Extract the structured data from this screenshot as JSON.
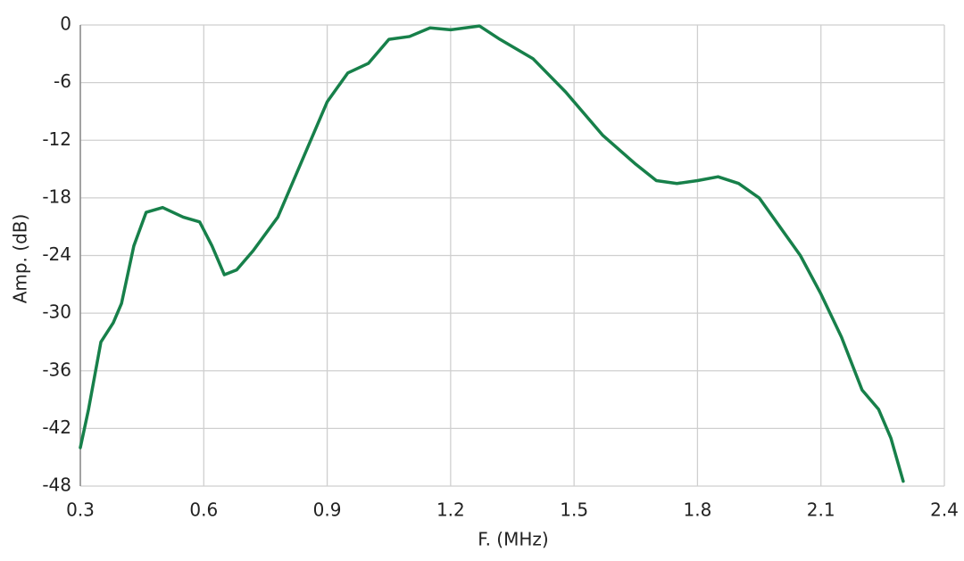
{
  "chart_data": {
    "type": "line",
    "xlabel": "F. (MHz)",
    "ylabel": "Amp. (dB)",
    "x": [
      0.3,
      0.32,
      0.35,
      0.38,
      0.4,
      0.43,
      0.46,
      0.5,
      0.55,
      0.59,
      0.62,
      0.65,
      0.68,
      0.72,
      0.78,
      0.84,
      0.9,
      0.95,
      1.0,
      1.05,
      1.1,
      1.15,
      1.2,
      1.27,
      1.32,
      1.4,
      1.48,
      1.57,
      1.65,
      1.7,
      1.75,
      1.8,
      1.85,
      1.9,
      1.95,
      2.0,
      2.05,
      2.1,
      2.15,
      2.2,
      2.24,
      2.27,
      2.3
    ],
    "series": [
      {
        "color": "#17804a",
        "values": [
          -44,
          -40,
          -33,
          -31,
          -29,
          -23,
          -19.5,
          -19,
          -20,
          -20.5,
          -23,
          -26,
          -25.5,
          -23.5,
          -20,
          -14,
          -8,
          -5,
          -4,
          -1.5,
          -1.2,
          -0.3,
          -0.5,
          -0.1,
          -1.5,
          -3.5,
          -7,
          -11.5,
          -14.5,
          -16.2,
          -16.5,
          -16.2,
          -15.8,
          -16.5,
          -18,
          -21,
          -24,
          -28,
          -32.5,
          -38,
          -40,
          -43,
          -47.5
        ]
      }
    ],
    "xlim": [
      0.3,
      2.4
    ],
    "xticks": [
      0.3,
      0.6,
      0.9,
      1.2,
      1.5,
      1.8,
      2.1,
      2.4
    ],
    "ylim": [
      -48,
      0
    ],
    "yticks": [
      0,
      -6,
      -12,
      -18,
      -24,
      -30,
      -36,
      -42,
      -48
    ],
    "grid": true
  }
}
